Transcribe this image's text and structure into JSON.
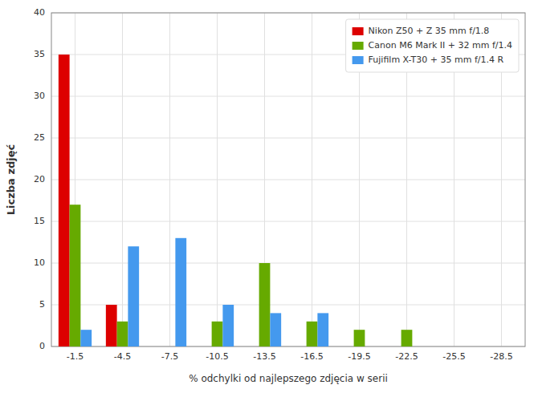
{
  "chart_data": {
    "type": "bar",
    "categories": [
      "-1.5",
      "-4.5",
      "-7.5",
      "-10.5",
      "-13.5",
      "-16.5",
      "-19.5",
      "-22.5",
      "-25.5",
      "-28.5"
    ],
    "series": [
      {
        "name": "Nikon Z50 + Z 35 mm f/1.8",
        "color": "#dd0000",
        "values": [
          35,
          5,
          0,
          0,
          0,
          0,
          0,
          0,
          0,
          0
        ]
      },
      {
        "name": "Canon M6 Mark II + 32 mm f/1.4",
        "color": "#66aa00",
        "values": [
          17,
          3,
          0,
          3,
          10,
          3,
          2,
          2,
          0,
          0
        ]
      },
      {
        "name": "Fujifilm X-T30 + 35 mm f/1.4 R",
        "color": "#4499ee",
        "values": [
          2,
          12,
          13,
          5,
          4,
          4,
          0,
          0,
          0,
          0
        ]
      }
    ],
    "xlabel": "% odchylki od najlepszego zdjęcia w serii",
    "ylabel": "Liczba zdjęć",
    "ylim": [
      0,
      40
    ],
    "yticks": [
      0,
      5,
      10,
      15,
      20,
      25,
      30,
      35,
      40
    ],
    "grid": true,
    "legend": "upper right"
  }
}
